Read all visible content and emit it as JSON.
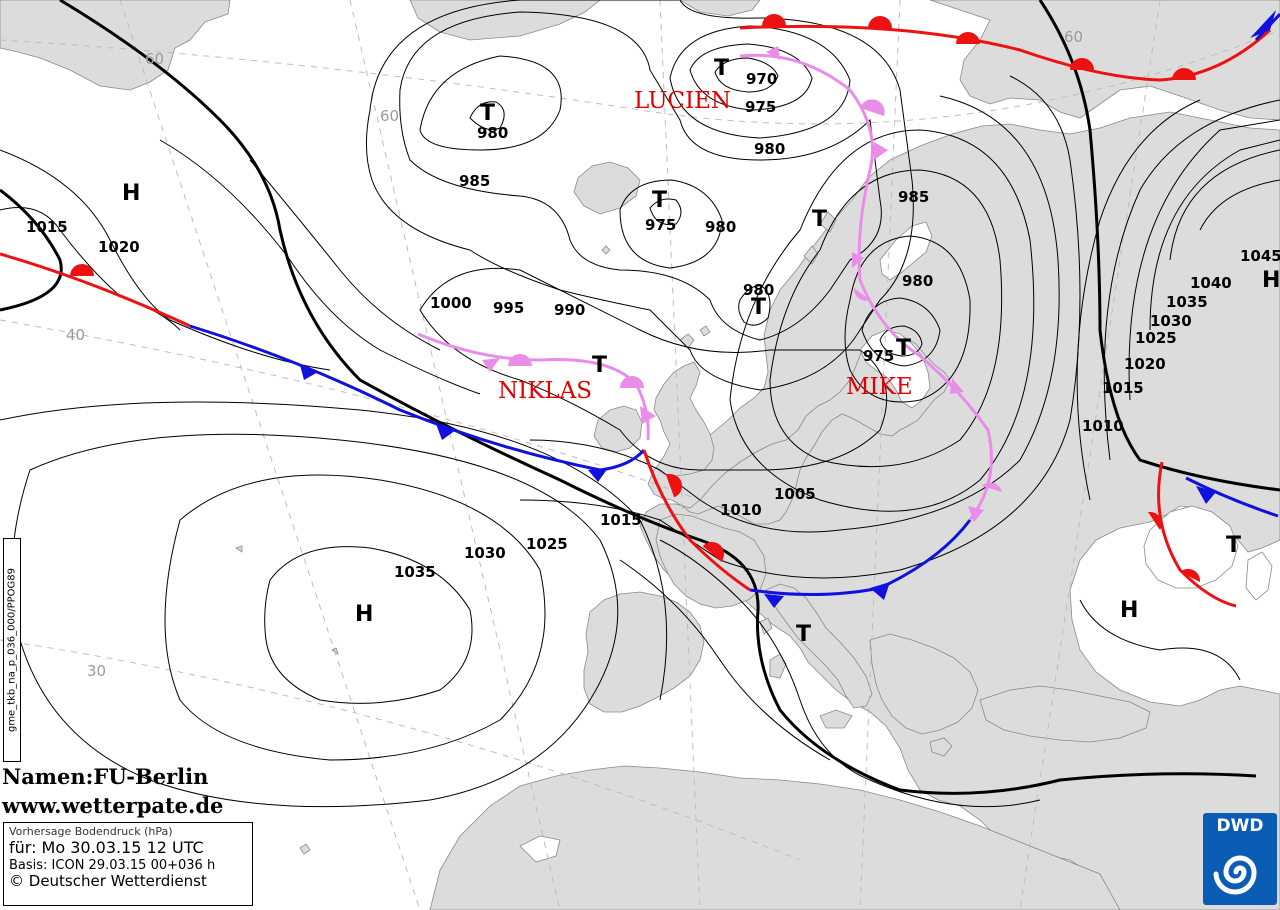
{
  "map": {
    "isobar_labels": [
      "1015",
      "1020",
      "1000",
      "995",
      "990",
      "985",
      "980",
      "975",
      "980",
      "970",
      "975",
      "980",
      "985",
      "980",
      "980",
      "975",
      "1045",
      "1040",
      "1035",
      "1030",
      "1025",
      "1020",
      "1015",
      "1010",
      "1005",
      "1010",
      "1015",
      "1025",
      "1030",
      "1035"
    ],
    "pressure_centers": {
      "high": "H",
      "low": "T"
    },
    "latitude_labels": [
      "60",
      "60",
      "60",
      "40",
      "30"
    ],
    "storm_names": {
      "lucien": "LUCIEN",
      "niklas": "NIKLAS",
      "mike": "MIKE"
    },
    "colors": {
      "land": "#dcdcdc",
      "sea": "#ffffff",
      "warm_front": "#ee1111",
      "cold_front": "#1111dd",
      "occlusion": "#e98de9",
      "storm_name": "#e00000"
    }
  },
  "credits": {
    "names": "Namen:FU-Berlin",
    "website": "www.wetterpate.de"
  },
  "info_box": {
    "product": "Vorhersage Bodendruck (hPa)",
    "valid_for": "für:  Mo 30.03.15  12 UTC",
    "basis": "Basis: ICON  29.03.15 00+036 h",
    "copyright": "© Deutscher Wetterdienst"
  },
  "side_code": "gme_tkb_na_p_036_000/PPOG89",
  "logo": {
    "text": "DWD",
    "icon": "dwd-swirl-icon"
  }
}
